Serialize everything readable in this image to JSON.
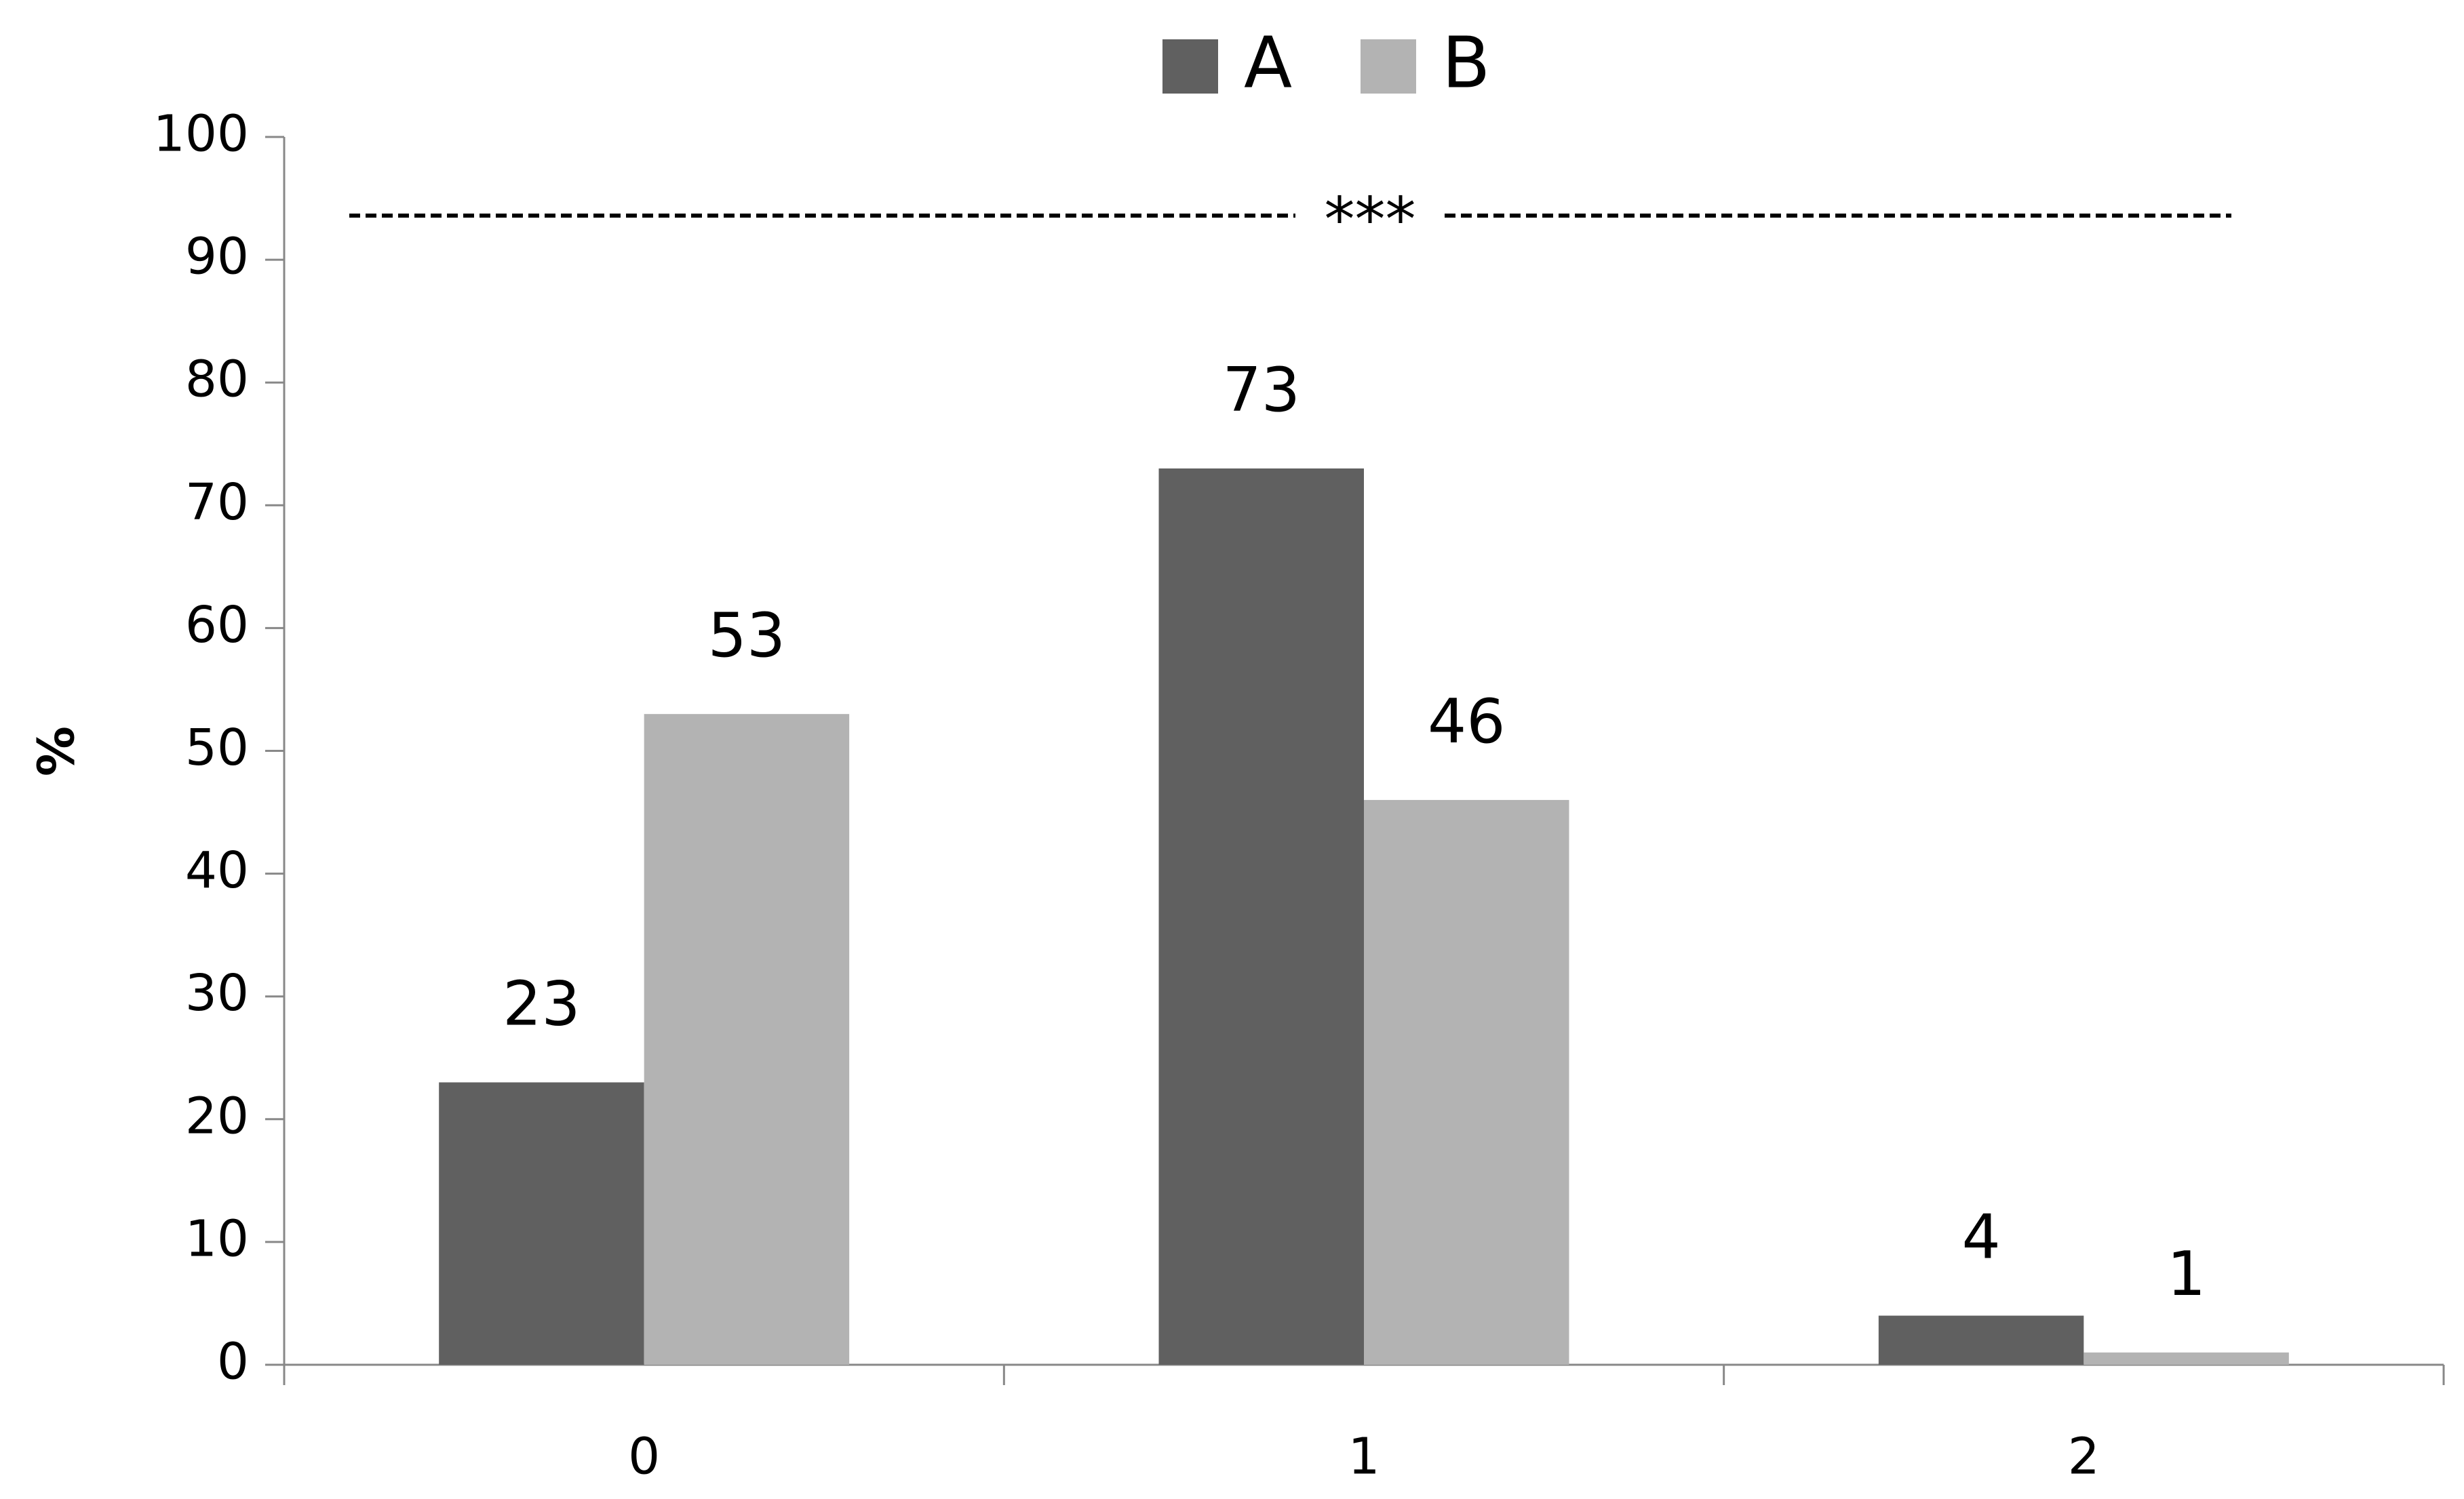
{
  "chart_data": {
    "type": "bar",
    "y_label": "%",
    "annotation": "***",
    "categories": [
      "0",
      "1",
      "2"
    ],
    "series": [
      {
        "name": "A",
        "color": "#606060",
        "values": [
          23,
          73,
          4
        ]
      },
      {
        "name": "B",
        "color": "#b3b3b3",
        "values": [
          53,
          46,
          1
        ]
      }
    ],
    "ylim": [
      0,
      100
    ],
    "yticks": [
      0,
      10,
      20,
      30,
      40,
      50,
      60,
      70,
      80,
      90,
      100
    ],
    "grid": false,
    "legend": "top",
    "show_value_labels": true
  }
}
